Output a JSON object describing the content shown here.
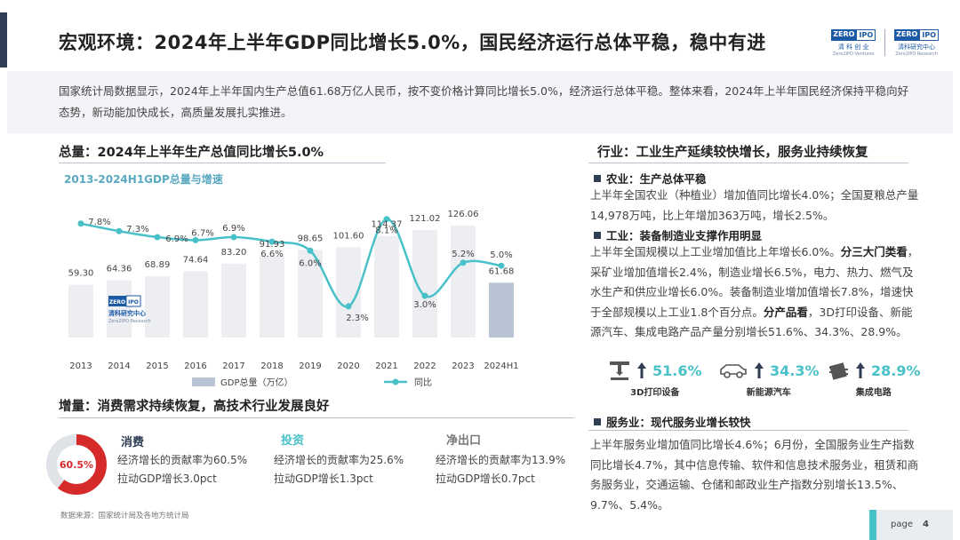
{
  "title": "宏观环境：2024年上半年GDP同比增长5.0%，国民经济运行总体平稳，稳中有进",
  "logos": {
    "left": {
      "mark_a": "ZERO",
      "mark_b": "IPO",
      "name": "清 科 创 业",
      "sub": "Zero2IPO Ventures"
    },
    "right": {
      "mark_a": "ZERO",
      "mark_b": "IPO",
      "name": "清科研究中心",
      "sub": "Zero2IPO Research"
    }
  },
  "summary": "国家统计局数据显示，2024年上半年国内生产总值61.68万亿人民币，按不变价格计算同比增长5.0%，经济运行总体平稳。整体来看，2024年上半年国民经济保持平稳向好态势，新动能加快成长，高质量发展扎实推进。",
  "total": {
    "heading": "总量：2024年上半年生产总值同比增长5.0%",
    "chart_title": "2013-2024H1GDP总量与增速"
  },
  "chart_data": {
    "type": "bar",
    "categories": [
      "2013",
      "2014",
      "2015",
      "2016",
      "2017",
      "2018",
      "2019",
      "2020",
      "2021",
      "2022",
      "2023",
      "2024H1"
    ],
    "series": [
      {
        "name": "GDP总量（万亿）",
        "type": "bar",
        "values": [
          59.3,
          64.36,
          68.89,
          74.64,
          83.2,
          91.93,
          98.65,
          101.6,
          114.37,
          121.02,
          126.06,
          61.68
        ],
        "labels": [
          "59.30",
          "64.36",
          "68.89",
          "74.64",
          "83.20",
          "91.93",
          "98.65",
          "101.60",
          "114.37",
          "121.02",
          "126.06",
          "61.68"
        ]
      },
      {
        "name": "同比",
        "type": "line",
        "values": [
          7.8,
          7.3,
          6.9,
          6.7,
          6.9,
          6.6,
          6.0,
          2.3,
          8.1,
          3.0,
          5.2,
          5.0
        ],
        "labels": [
          "7.8%",
          "7.3%",
          "6.9%",
          "6.7%",
          "6.9%",
          "6.6%",
          "6.0%",
          "2.3%",
          "8.1%",
          "3.0%",
          "5.2%",
          "5.0%"
        ]
      }
    ],
    "colors": {
      "bar": "#eceef1",
      "bar_last": "#b8c4d4",
      "line": "#48c1c8"
    },
    "legend": "bottom"
  },
  "chart_watermark": {
    "mark_a": "ZERO",
    "mark_b": "IPO",
    "name": "清科研究中心",
    "sub": "Zero2IPO Research"
  },
  "industry": {
    "heading": "行业：工业生产延续较快增长，服务业持续恢复",
    "agri_title": "农业：生产总体平稳",
    "agri_text": "上半年全国农业（种植业）增加值同比增长4.0%；全国夏粮总产量14,978万吨，比上年增加363万吨，增长2.5%。",
    "ind_title": "工业：装备制造业支撑作用明显",
    "ind_text_1": "上半年全国规模以上工业增加值比上年增长6.0%。",
    "ind_bold_1": "分三大门类看",
    "ind_text_2": "，采矿业增加值增长2.4%，制造业增长6.5%，电力、热力、燃气及水生产和供应业增长6.0%。装备制造业增加值增长7.8%，增速快于全部规模以上工业1.8个百分点。",
    "ind_bold_2": "分产品看",
    "ind_text_3": "，3D打印设备、新能源汽车、集成电路产品产量分别增长51.6%、34.3%、28.9%。",
    "products": [
      {
        "value": "51.6%",
        "label": "3D打印设备"
      },
      {
        "value": "34.3%",
        "label": "新能源汽车"
      },
      {
        "value": "28.9%",
        "label": "集成电路"
      }
    ],
    "svc_title": "服务业：现代服务业增长较快",
    "svc_text": "上半年服务业增加值同比增长4.6%；6月份，全国服务业生产指数同比增长4.7%，其中信息传输、软件和信息技术服务业，租赁和商务服务业，交通运输、仓储和邮政业生产指数分别增长13.5%、9.7%、5.4%。"
  },
  "increment": {
    "heading": "增量：消费需求持续恢复，高技术行业发展良好",
    "donut_label": "60.5%",
    "donut_value": 60.5,
    "cards": [
      {
        "title": "消费",
        "line1": "经济增长的贡献率为60.5%",
        "line2": "拉动GDP增长3.0pct",
        "color": "#2f3e55"
      },
      {
        "title": "投资",
        "line1": "经济增长的贡献率为25.6%",
        "line2": "拉动GDP增长1.3pct",
        "color": "#48c1c8"
      },
      {
        "title": "净出口",
        "line1": "经济增长的贡献率为13.9%",
        "line2": "拉动GDP增长0.7pct",
        "color": "#777777"
      }
    ],
    "donut_colors": {
      "fill": "#d62a2a",
      "track": "#dfe3e8"
    }
  },
  "source": "数据来源：国家统计局及各地方统计局",
  "page": {
    "label": "page",
    "number": "4"
  }
}
